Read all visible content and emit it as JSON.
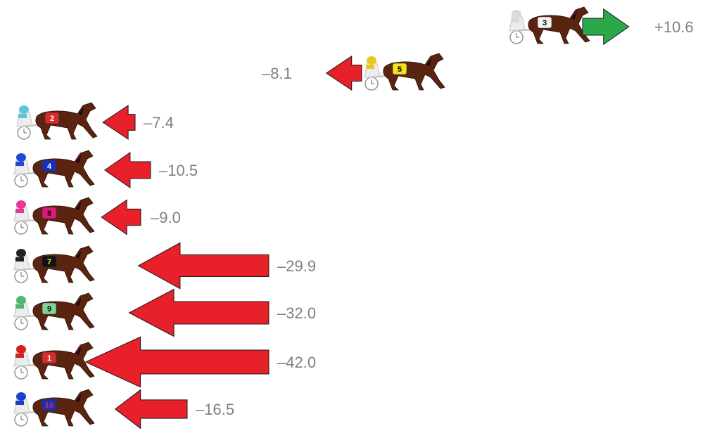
{
  "colors": {
    "gain_arrow": "#2aa84a",
    "loss_arrow": "#e8202a",
    "arrow_stroke": "#1a1a1a",
    "value_text": "#7f7f7f",
    "horse_body": "#5a2410",
    "sulky_wheel": "#9a9a9a"
  },
  "entries": [
    {
      "bib": "3",
      "bib_color": "#f2f2f2",
      "bib_text_color": "#000000",
      "driver_color": "#d9d9d9",
      "change": 10.6,
      "label": "+10.6",
      "direction": "gain"
    },
    {
      "bib": "5",
      "bib_color": "#f5e21a",
      "bib_text_color": "#000000",
      "driver_color": "#e8c81e",
      "change": -8.1,
      "label": "–8.1",
      "direction": "loss"
    },
    {
      "bib": "2",
      "bib_color": "#d92b2b",
      "bib_text_color": "#ffffff",
      "driver_color": "#5fc4dc",
      "change": -7.4,
      "label": "–7.4",
      "direction": "loss"
    },
    {
      "bib": "4",
      "bib_color": "#1a2fb8",
      "bib_text_color": "#ffffff",
      "driver_color": "#2248d6",
      "change": -10.5,
      "label": "–10.5",
      "direction": "loss"
    },
    {
      "bib": "8",
      "bib_color": "#e0187a",
      "bib_text_color": "#000000",
      "driver_color": "#e8359a",
      "change": -9.0,
      "label": "–9.0",
      "direction": "loss"
    },
    {
      "bib": "7",
      "bib_color": "#111111",
      "bib_text_color": "#f5e21a",
      "driver_color": "#222222",
      "change": -29.9,
      "label": "–29.9",
      "direction": "loss"
    },
    {
      "bib": "9",
      "bib_color": "#7fd49a",
      "bib_text_color": "#000000",
      "driver_color": "#4fb870",
      "change": -32.0,
      "label": "–32.0",
      "direction": "loss"
    },
    {
      "bib": "1",
      "bib_color": "#d92b2b",
      "bib_text_color": "#ffffff",
      "driver_color": "#d62020",
      "change": -42.0,
      "label": "–42.0",
      "direction": "loss"
    },
    {
      "bib": "10",
      "bib_color": "#1a2fb8",
      "bib_text_color": "#d92b2b",
      "driver_color": "#1f3ec8",
      "change": -16.5,
      "label": "–16.5",
      "direction": "loss"
    }
  ]
}
